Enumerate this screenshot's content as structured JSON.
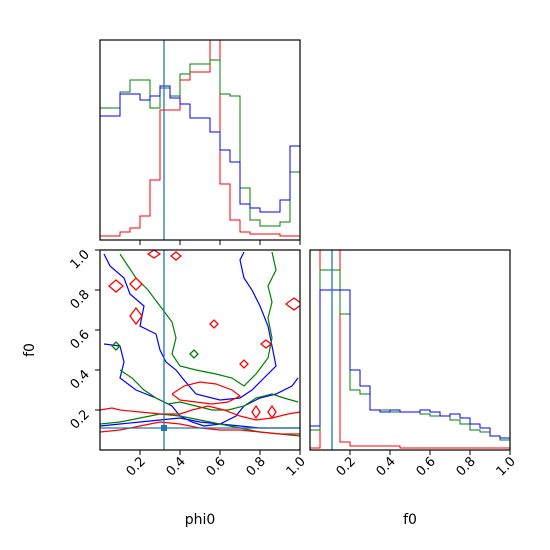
{
  "chart_data": {
    "type": "corner",
    "parameters": [
      "phi0",
      "f0"
    ],
    "truth": {
      "phi0": 0.32,
      "f0": 0.11
    },
    "truth_color": "#1f77b4",
    "series_colors": {
      "red": "#ff0000",
      "green": "#008000",
      "blue": "#0000ff"
    },
    "panels": [
      {
        "id": "hist-phi0",
        "type": "histogram",
        "xlim": [
          0,
          1
        ],
        "ylim": [
          0,
          1
        ],
        "bin_edges": [
          0.0,
          0.05,
          0.1,
          0.15,
          0.2,
          0.25,
          0.3,
          0.35,
          0.4,
          0.45,
          0.5,
          0.55,
          0.6,
          0.65,
          0.7,
          0.75,
          0.8,
          0.85,
          0.9,
          0.95,
          1.0
        ],
        "series": [
          {
            "color": "red",
            "values": [
              0.02,
              0.02,
              0.04,
              0.06,
              0.12,
              0.3,
              0.65,
              0.65,
              0.8,
              0.84,
              0.84,
              1.0,
              0.28,
              0.1,
              0.04,
              0.03,
              0.03,
              0.03,
              0.02,
              0.02
            ]
          },
          {
            "color": "green",
            "values": [
              0.66,
              0.66,
              0.74,
              0.8,
              0.8,
              0.66,
              0.76,
              0.72,
              0.83,
              0.88,
              0.88,
              0.9,
              0.73,
              0.72,
              0.26,
              0.1,
              0.07,
              0.07,
              0.09,
              0.34
            ]
          },
          {
            "color": "blue",
            "values": [
              0.62,
              0.62,
              0.73,
              0.73,
              0.7,
              0.72,
              0.77,
              0.71,
              0.68,
              0.61,
              0.61,
              0.54,
              0.45,
              0.39,
              0.18,
              0.16,
              0.14,
              0.14,
              0.2,
              0.47
            ]
          }
        ]
      },
      {
        "id": "hist-f0",
        "type": "histogram",
        "xlim": [
          0,
          1
        ],
        "ylim": [
          0,
          1
        ],
        "bin_edges": [
          0.0,
          0.05,
          0.1,
          0.15,
          0.2,
          0.25,
          0.3,
          0.35,
          0.4,
          0.45,
          0.5,
          0.55,
          0.6,
          0.65,
          0.7,
          0.75,
          0.8,
          0.85,
          0.9,
          0.95,
          1.0
        ],
        "series": [
          {
            "color": "red",
            "values": [
              0.01,
              1.0,
              1.0,
              0.04,
              0.02,
              0.02,
              0.02,
              0.02,
              0.02,
              0.01,
              0.01,
              0.01,
              0.01,
              0.01,
              0.01,
              0.01,
              0.01,
              0.01,
              0.01,
              0.01
            ]
          },
          {
            "color": "green",
            "values": [
              0.1,
              0.9,
              0.9,
              0.68,
              0.3,
              0.28,
              0.2,
              0.2,
              0.19,
              0.19,
              0.19,
              0.18,
              0.17,
              0.17,
              0.15,
              0.13,
              0.1,
              0.09,
              0.07,
              0.05
            ]
          },
          {
            "color": "blue",
            "values": [
              0.12,
              0.8,
              0.8,
              0.8,
              0.4,
              0.32,
              0.2,
              0.19,
              0.2,
              0.19,
              0.19,
              0.2,
              0.19,
              0.17,
              0.18,
              0.16,
              0.13,
              0.11,
              0.07,
              0.06
            ]
          }
        ]
      },
      {
        "id": "contour-phi0-f0",
        "type": "contour",
        "xlim": [
          0,
          1
        ],
        "ylim": [
          0,
          1
        ],
        "contours": [
          {
            "color": "blue",
            "points": [
              [
                0.02,
                0.98
              ],
              [
                0.05,
                0.92
              ],
              [
                0.12,
                0.86
              ],
              [
                0.15,
                0.78
              ],
              [
                0.22,
                0.72
              ],
              [
                0.2,
                0.62
              ],
              [
                0.28,
                0.58
              ],
              [
                0.3,
                0.5
              ],
              [
                0.33,
                0.44
              ],
              [
                0.38,
                0.4
              ],
              [
                0.42,
                0.35
              ],
              [
                0.48,
                0.28
              ],
              [
                0.6,
                0.25
              ],
              [
                0.7,
                0.26
              ],
              [
                0.76,
                0.3
              ],
              [
                0.82,
                0.36
              ],
              [
                0.88,
                0.42
              ],
              [
                0.86,
                0.52
              ],
              [
                0.84,
                0.62
              ],
              [
                0.8,
                0.72
              ],
              [
                0.76,
                0.8
              ],
              [
                0.72,
                0.86
              ],
              [
                0.7,
                0.95
              ],
              [
                0.72,
                0.99
              ]
            ]
          },
          {
            "color": "blue",
            "points": [
              [
                0.02,
                0.53
              ],
              [
                0.1,
                0.52
              ],
              [
                0.12,
                0.44
              ],
              [
                0.1,
                0.36
              ],
              [
                0.18,
                0.3
              ],
              [
                0.28,
                0.26
              ],
              [
                0.36,
                0.22
              ],
              [
                0.4,
                0.17
              ],
              [
                0.46,
                0.14
              ],
              [
                0.52,
                0.12
              ],
              [
                0.6,
                0.13
              ],
              [
                0.68,
                0.17
              ],
              [
                0.72,
                0.22
              ],
              [
                0.8,
                0.26
              ],
              [
                0.88,
                0.28
              ],
              [
                0.96,
                0.32
              ],
              [
                0.99,
                0.36
              ]
            ]
          },
          {
            "color": "blue",
            "points": [
              [
                0.0,
                0.12
              ],
              [
                0.1,
                0.13
              ],
              [
                0.2,
                0.14
              ],
              [
                0.3,
                0.15
              ],
              [
                0.4,
                0.16
              ],
              [
                0.5,
                0.14
              ],
              [
                0.6,
                0.13
              ],
              [
                0.7,
                0.12
              ],
              [
                0.8,
                0.11
              ],
              [
                0.9,
                0.11
              ],
              [
                1.0,
                0.11
              ]
            ]
          },
          {
            "color": "green",
            "points": [
              [
                0.1,
                0.98
              ],
              [
                0.14,
                0.92
              ],
              [
                0.18,
                0.86
              ],
              [
                0.24,
                0.8
              ],
              [
                0.3,
                0.72
              ],
              [
                0.36,
                0.64
              ],
              [
                0.38,
                0.56
              ],
              [
                0.36,
                0.48
              ],
              [
                0.4,
                0.42
              ],
              [
                0.48,
                0.4
              ],
              [
                0.58,
                0.38
              ],
              [
                0.66,
                0.36
              ],
              [
                0.72,
                0.32
              ],
              [
                0.78,
                0.38
              ],
              [
                0.84,
                0.46
              ],
              [
                0.86,
                0.56
              ],
              [
                0.84,
                0.66
              ],
              [
                0.86,
                0.74
              ],
              [
                0.84,
                0.82
              ],
              [
                0.88,
                0.9
              ],
              [
                0.86,
                0.99
              ]
            ]
          },
          {
            "color": "green",
            "points": [
              [
                0.1,
                0.4
              ],
              [
                0.16,
                0.36
              ],
              [
                0.22,
                0.3
              ],
              [
                0.28,
                0.26
              ],
              [
                0.34,
                0.23
              ],
              [
                0.4,
                0.24
              ],
              [
                0.48,
                0.22
              ],
              [
                0.56,
                0.2
              ],
              [
                0.64,
                0.2
              ],
              [
                0.72,
                0.22
              ],
              [
                0.78,
                0.26
              ],
              [
                0.86,
                0.28
              ],
              [
                0.92,
                0.26
              ],
              [
                0.99,
                0.24
              ]
            ]
          },
          {
            "color": "green",
            "points": [
              [
                0.0,
                0.13
              ],
              [
                0.1,
                0.14
              ],
              [
                0.2,
                0.16
              ],
              [
                0.3,
                0.18
              ],
              [
                0.4,
                0.17
              ],
              [
                0.5,
                0.15
              ],
              [
                0.6,
                0.13
              ],
              [
                0.7,
                0.11
              ],
              [
                0.8,
                0.09
              ],
              [
                0.9,
                0.08
              ],
              [
                1.0,
                0.07
              ]
            ]
          },
          {
            "color": "red",
            "points": [
              [
                0.0,
                0.2
              ],
              [
                0.06,
                0.21
              ],
              [
                0.1,
                0.2
              ],
              [
                0.2,
                0.19
              ],
              [
                0.3,
                0.18
              ],
              [
                0.4,
                0.18
              ],
              [
                0.46,
                0.2
              ],
              [
                0.54,
                0.22
              ],
              [
                0.62,
                0.2
              ],
              [
                0.7,
                0.17
              ],
              [
                0.78,
                0.15
              ],
              [
                0.86,
                0.16
              ],
              [
                0.94,
                0.18
              ],
              [
                1.0,
                0.19
              ]
            ]
          },
          {
            "color": "red",
            "points": [
              [
                0.0,
                0.09
              ],
              [
                0.1,
                0.1
              ],
              [
                0.2,
                0.12
              ],
              [
                0.3,
                0.14
              ],
              [
                0.4,
                0.13
              ],
              [
                0.5,
                0.11
              ],
              [
                0.6,
                0.1
              ],
              [
                0.7,
                0.1
              ],
              [
                0.8,
                0.09
              ],
              [
                0.9,
                0.08
              ],
              [
                1.0,
                0.08
              ]
            ]
          },
          {
            "color": "red",
            "points": [
              [
                0.36,
                0.28
              ],
              [
                0.42,
                0.32
              ],
              [
                0.5,
                0.34
              ],
              [
                0.58,
                0.33
              ],
              [
                0.66,
                0.3
              ],
              [
                0.7,
                0.27
              ],
              [
                0.64,
                0.24
              ],
              [
                0.56,
                0.23
              ],
              [
                0.48,
                0.24
              ],
              [
                0.4,
                0.25
              ],
              [
                0.36,
                0.28
              ]
            ]
          }
        ],
        "islands": [
          {
            "color": "red",
            "x": 0.08,
            "y": 0.82,
            "w": 0.035,
            "h": 0.03
          },
          {
            "color": "red",
            "x": 0.18,
            "y": 0.83,
            "w": 0.03,
            "h": 0.03
          },
          {
            "color": "red",
            "x": 0.27,
            "y": 0.98,
            "w": 0.03,
            "h": 0.02
          },
          {
            "color": "red",
            "x": 0.38,
            "y": 0.97,
            "w": 0.025,
            "h": 0.02
          },
          {
            "color": "red",
            "x": 0.18,
            "y": 0.67,
            "w": 0.03,
            "h": 0.04
          },
          {
            "color": "red",
            "x": 0.57,
            "y": 0.63,
            "w": 0.02,
            "h": 0.02
          },
          {
            "color": "red",
            "x": 0.72,
            "y": 0.43,
            "w": 0.02,
            "h": 0.02
          },
          {
            "color": "red",
            "x": 0.83,
            "y": 0.53,
            "w": 0.025,
            "h": 0.02
          },
          {
            "color": "red",
            "x": 0.97,
            "y": 0.73,
            "w": 0.04,
            "h": 0.03
          },
          {
            "color": "red",
            "x": 0.78,
            "y": 0.19,
            "w": 0.02,
            "h": 0.03
          },
          {
            "color": "red",
            "x": 0.86,
            "y": 0.19,
            "w": 0.02,
            "h": 0.03
          },
          {
            "color": "green",
            "x": 0.47,
            "y": 0.48,
            "w": 0.02,
            "h": 0.02
          },
          {
            "color": "green",
            "x": 0.08,
            "y": 0.52,
            "w": 0.02,
            "h": 0.02
          }
        ]
      }
    ],
    "axes": {
      "phi0": {
        "label": "phi0",
        "ticks": [
          "0.2",
          "0.4",
          "0.6",
          "0.8",
          "1.0"
        ]
      },
      "f0": {
        "label": "f0",
        "ticks": [
          "0.2",
          "0.4",
          "0.6",
          "0.8",
          "1.0"
        ]
      }
    }
  }
}
